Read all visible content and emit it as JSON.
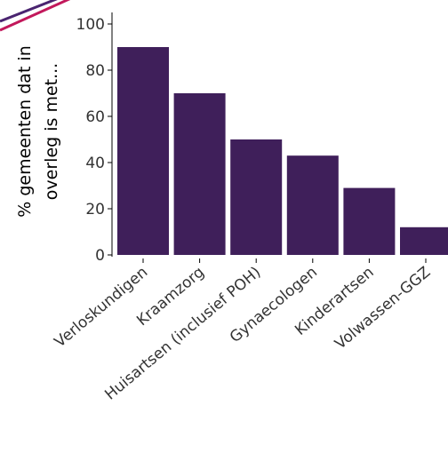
{
  "colors": {
    "bar": "#3f1f5a",
    "corner_purple": "#4a2470",
    "corner_magenta": "#c2185b",
    "axis": "#000000",
    "text": "#333333"
  },
  "chart_data": {
    "type": "bar",
    "categories": [
      "Verloskundigen",
      "Kraamzorg",
      "Huisartsen (inclusief POH)",
      "Gynaecologen",
      "Kinderartsen",
      "Volwassen-GGZ"
    ],
    "values": [
      90,
      70,
      50,
      43,
      29,
      12
    ],
    "ylabel_lines": [
      "% gemeenten dat in",
      "overleg is met..."
    ],
    "yticks": [
      0,
      20,
      40,
      60,
      80,
      100
    ],
    "ylim": [
      0,
      100
    ],
    "grid": false,
    "legend": "none"
  }
}
